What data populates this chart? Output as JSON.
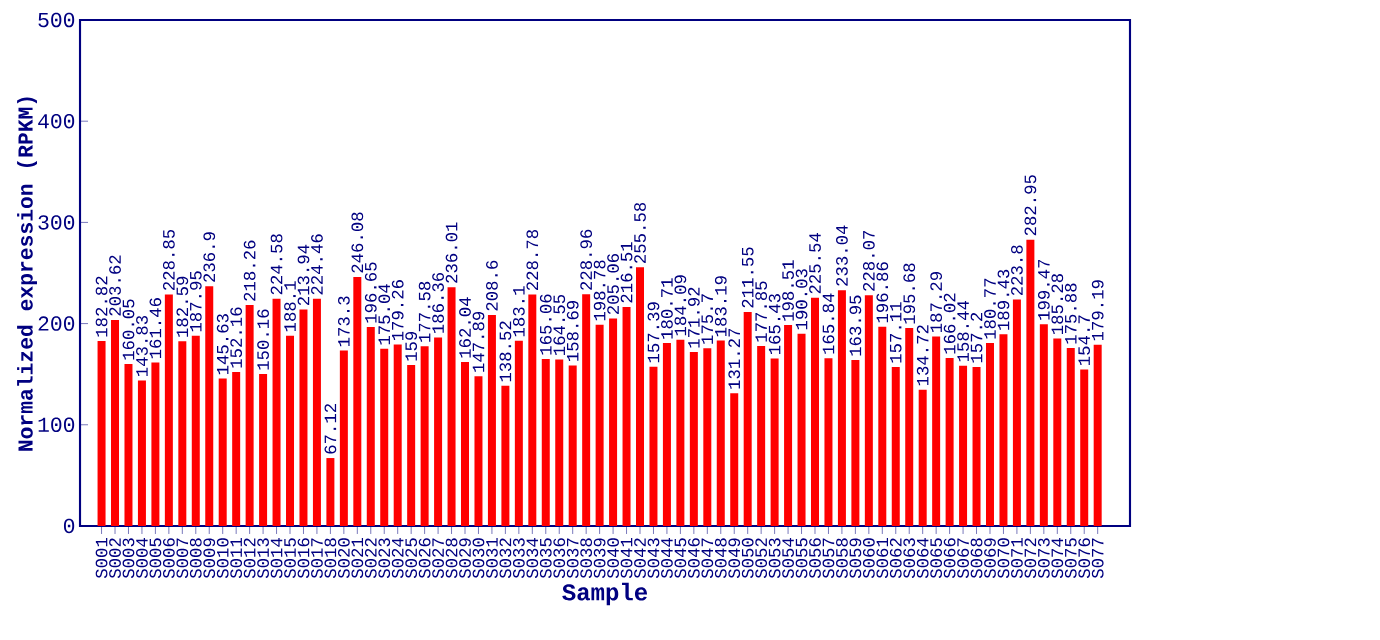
{
  "chart_data": {
    "type": "bar",
    "xlabel": "Sample",
    "ylabel": "Normalized expression (RPKM)",
    "categories": [
      "S001",
      "S002",
      "S003",
      "S004",
      "S005",
      "S006",
      "S007",
      "S008",
      "S009",
      "S010",
      "S011",
      "S012",
      "S013",
      "S014",
      "S015",
      "S016",
      "S017",
      "S018",
      "S020",
      "S021",
      "S022",
      "S023",
      "S024",
      "S025",
      "S026",
      "S027",
      "S028",
      "S029",
      "S030",
      "S031",
      "S032",
      "S033",
      "S034",
      "S035",
      "S036",
      "S037",
      "S038",
      "S039",
      "S040",
      "S041",
      "S042",
      "S043",
      "S044",
      "S045",
      "S046",
      "S047",
      "S048",
      "S049",
      "S050",
      "S052",
      "S053",
      "S054",
      "S055",
      "S056",
      "S057",
      "S058",
      "S059",
      "S060",
      "S061",
      "S062",
      "S063",
      "S064",
      "S065",
      "S066",
      "S067",
      "S068",
      "S069",
      "S070",
      "S071",
      "S072",
      "S073",
      "S074",
      "S075",
      "S076",
      "S077"
    ],
    "values": [
      182.82,
      203.62,
      160.05,
      143.83,
      161.46,
      228.85,
      182.59,
      187.95,
      236.9,
      145.63,
      152.16,
      218.26,
      150.16,
      224.58,
      188.1,
      213.94,
      224.46,
      67.12,
      173.3,
      246.08,
      196.65,
      175.04,
      179.26,
      159,
      177.58,
      186.36,
      236.01,
      162.04,
      147.89,
      208.6,
      138.52,
      183.1,
      228.78,
      165.06,
      164.55,
      158.69,
      228.96,
      198.78,
      205.06,
      216.51,
      255.58,
      157.39,
      180.71,
      184.09,
      171.92,
      175.7,
      183.19,
      131.27,
      211.55,
      177.85,
      165.43,
      198.51,
      190.03,
      225.54,
      165.84,
      233.04,
      163.95,
      228.07,
      196.86,
      157.11,
      195.68,
      134.72,
      187.29,
      166.02,
      158.44,
      157.2,
      180.77,
      189.43,
      223.8,
      282.95,
      199.47,
      185.28,
      175.88,
      154.7,
      179.19
    ],
    "color": "#ff0000",
    "ylim": [
      0,
      500
    ],
    "yticks": [
      0,
      100,
      200,
      300,
      400,
      500
    ],
    "data_labels": true
  }
}
